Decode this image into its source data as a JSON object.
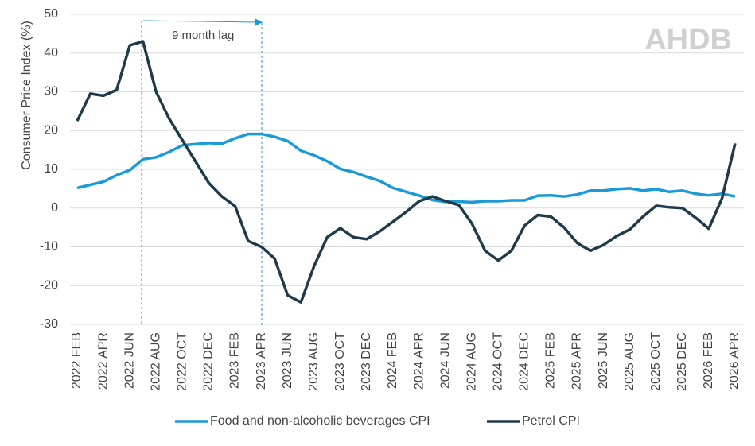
{
  "chart_data": {
    "type": "line",
    "y_label": "Consumer Price Index (%)",
    "annotation": "9 month lag",
    "logo": "AHDB",
    "categories": [
      "2022 FEB",
      null,
      "2022 APR",
      null,
      "2022 JUN",
      null,
      "2022 AUG",
      null,
      "2022 OCT",
      null,
      "2022 DEC",
      null,
      "2023 FEB",
      null,
      "2023 APR",
      null,
      "2023 JUN",
      null,
      "2023 AUG",
      null,
      "2023 OCT",
      null,
      "2023 DEC",
      null,
      "2024 FEB",
      null,
      "2024 APR",
      null,
      "2024 JUN",
      null,
      "2024 AUG",
      null,
      "2024 OCT",
      null,
      "2024 DEC",
      null,
      "2025 FEB",
      null,
      "2025 APR",
      null,
      "2025 JUN",
      null,
      "2025 AUG",
      null,
      "2025 OCT",
      null,
      "2025 DEC",
      null,
      "2026 FEB",
      null,
      "2026 APR"
    ],
    "series": [
      {
        "name": "Food and non-alcoholic beverages CPI",
        "color": "#1a9ad6",
        "values": [
          5.2,
          6,
          6.8,
          8.5,
          9.8,
          12.6,
          13.1,
          14.5,
          16.2,
          16.5,
          16.8,
          16.6,
          18,
          19.1,
          19.1,
          18.4,
          17.3,
          14.8,
          13.6,
          12.1,
          10.1,
          9.3,
          8.1,
          7,
          5.2,
          4.2,
          3.2,
          2.1,
          1.6,
          1.7,
          1.5,
          1.8,
          1.8,
          2,
          2,
          3.2,
          3.3,
          3,
          3.5,
          4.5,
          4.5,
          4.9,
          5.1,
          4.5,
          4.9,
          4.2,
          4.5,
          3.7,
          3.3,
          3.7,
          3
        ]
      },
      {
        "name": "Petrol CPI",
        "color": "#1f3a4a",
        "values": [
          22.5,
          29.5,
          29,
          30.5,
          42,
          43,
          30,
          23,
          17.5,
          12,
          6.5,
          3,
          0.5,
          -8.5,
          -10,
          -13,
          -22.5,
          -24.3,
          -15,
          -7.5,
          -5.2,
          -7.5,
          -8,
          -6,
          -3.5,
          -1,
          1.8,
          3,
          1.8,
          0.8,
          -4,
          -11,
          -13.5,
          -11,
          -4.5,
          -1.8,
          -2.2,
          -5,
          -9,
          -11,
          -9.5,
          -7.2,
          -5.5,
          -2.2,
          0.6,
          0.2,
          0,
          -2.5,
          -5.3,
          2.5,
          16.7
        ]
      }
    ],
    "ylim": [
      -30,
      50
    ],
    "yticks": [
      -30,
      -20,
      -10,
      0,
      10,
      20,
      30,
      40,
      50
    ],
    "grid": true
  }
}
